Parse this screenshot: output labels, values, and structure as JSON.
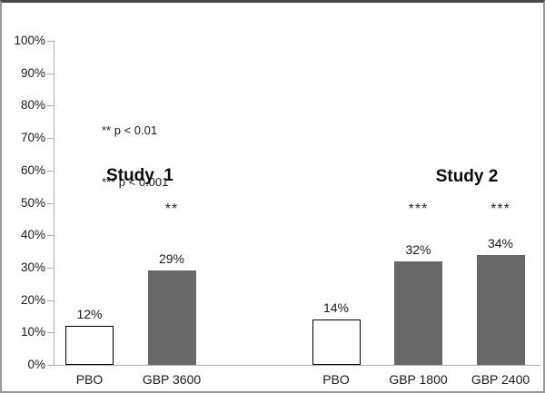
{
  "chart_data": {
    "type": "bar",
    "title": "",
    "xlabel": "",
    "ylabel": "",
    "y_axis": {
      "min": 0,
      "max": 100,
      "step": 10,
      "tick_labels": [
        "0%",
        "10%",
        "20%",
        "30%",
        "40%",
        "50%",
        "60%",
        "70%",
        "80%",
        "90%",
        "100%"
      ]
    },
    "annotations": [
      "** p < 0.01",
      "*** p < 0.001"
    ],
    "groups": [
      {
        "name": "Study  1",
        "bars": [
          {
            "category": "PBO",
            "value": 12,
            "value_label": "12%",
            "significance": "",
            "type": "placebo"
          },
          {
            "category": "GBP 3600",
            "value": 29,
            "value_label": "29%",
            "significance": "**",
            "type": "treatment"
          }
        ]
      },
      {
        "name": "Study 2",
        "bars": [
          {
            "category": "PBO",
            "value": 14,
            "value_label": "14%",
            "significance": "",
            "type": "placebo"
          },
          {
            "category": "GBP 1800",
            "value": 32,
            "value_label": "32%",
            "significance": "***",
            "type": "treatment"
          },
          {
            "category": "GBP 2400",
            "value": 34,
            "value_label": "34%",
            "significance": "***",
            "type": "treatment"
          }
        ]
      }
    ],
    "colors": {
      "placebo_fill": "#ffffff",
      "placebo_border": "#000000",
      "treatment_fill": "#686868",
      "axis": "#b0b0b0",
      "text": "#1a1a1a"
    },
    "legend_position": "upper-left-inside",
    "grid": "off"
  }
}
